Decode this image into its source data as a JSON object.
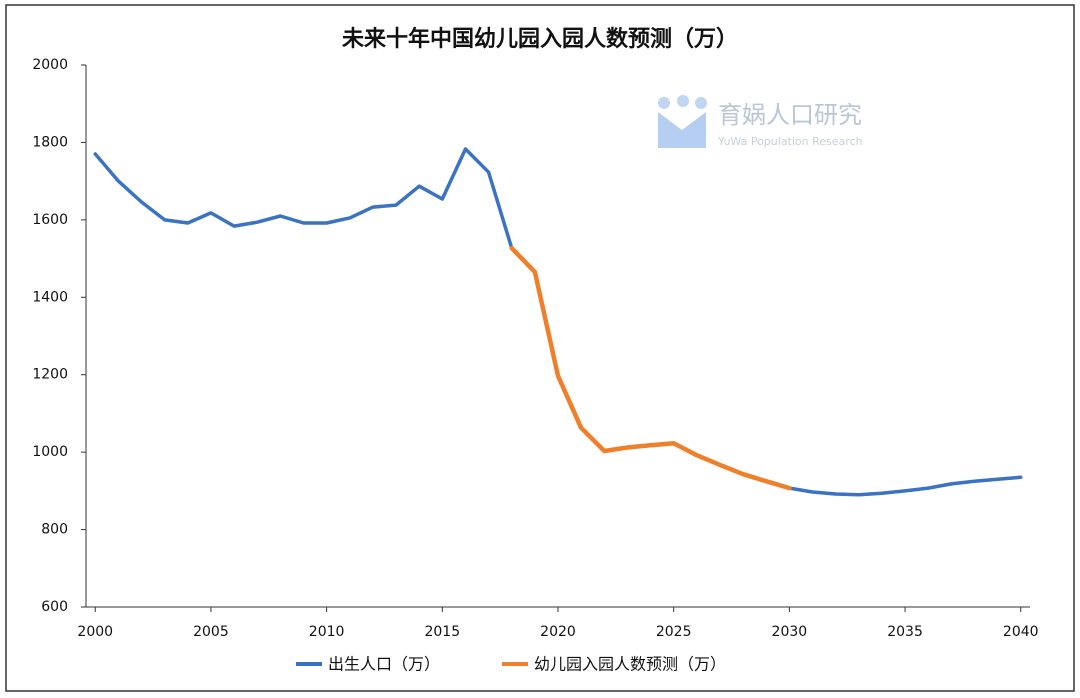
{
  "chart_data": {
    "type": "line",
    "title": "未来十年中国幼儿园入园人数预测（万）",
    "watermark": "育娲人口研究",
    "watermark_subtitle": "YuWa Population Research",
    "x": [
      2000,
      2001,
      2002,
      2003,
      2004,
      2005,
      2006,
      2007,
      2008,
      2009,
      2010,
      2011,
      2012,
      2013,
      2014,
      2015,
      2016,
      2017,
      2018,
      2019,
      2020,
      2021,
      2022,
      2023,
      2024,
      2025,
      2026,
      2027,
      2028,
      2029,
      2030,
      2031,
      2032,
      2033,
      2034,
      2035,
      2036,
      2037,
      2038,
      2039,
      2040
    ],
    "series": [
      {
        "name": "出生人口（万）",
        "color": "#3a72c4",
        "values": [
          1770,
          1700,
          1646,
          1600,
          1592,
          1618,
          1584,
          1594,
          1610,
          1592,
          1592,
          1605,
          1633,
          1638,
          1687,
          1654,
          1783,
          1723,
          1527,
          null,
          null,
          null,
          null,
          null,
          null,
          null,
          null,
          null,
          null,
          null,
          907,
          897,
          892,
          890,
          894,
          900,
          907,
          918,
          925,
          930,
          935
        ]
      },
      {
        "name": "幼儿园入园人数预测（万）",
        "color": "#f07f2a",
        "values": [
          null,
          null,
          null,
          null,
          null,
          null,
          null,
          null,
          null,
          null,
          null,
          null,
          null,
          null,
          null,
          null,
          null,
          null,
          1527,
          1465,
          1197,
          1063,
          1003,
          1012,
          1018,
          1023,
          992,
          967,
          943,
          925,
          907,
          null,
          null,
          null,
          null,
          null,
          null,
          null,
          null,
          null,
          null
        ]
      }
    ],
    "xlim": [
      1999.6,
      2040.4
    ],
    "xticks": [
      2000,
      2005,
      2010,
      2015,
      2020,
      2025,
      2030,
      2035,
      2040
    ],
    "ylim": [
      600,
      2000
    ],
    "yticks": [
      600,
      800,
      1000,
      1200,
      1400,
      1600,
      1800,
      2000
    ],
    "grid": false
  }
}
